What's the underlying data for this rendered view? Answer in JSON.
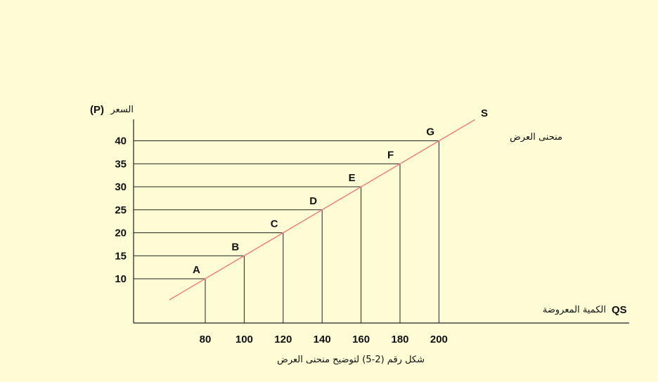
{
  "colors": {
    "background": "#fdfcd4",
    "axis": "#222222",
    "guide": "#222222",
    "supply_line": "#f08080"
  },
  "chart_data": {
    "type": "line",
    "y_axis_title_ar": "السعر",
    "y_axis_title_en": "(P)",
    "x_axis_title_ar": "الكمية المعروضة",
    "x_axis_title_en": "QS",
    "curve_label": "S",
    "curve_name_ar": "منحنى العرض",
    "caption": "شكل رقم (2-5) لتوضيح منحنى العرض",
    "x_ticks": [
      80,
      100,
      120,
      140,
      160,
      180,
      200
    ],
    "y_ticks": [
      10,
      15,
      20,
      25,
      30,
      35,
      40
    ],
    "points": [
      {
        "label": "A",
        "x": 80,
        "y": 10
      },
      {
        "label": "B",
        "x": 100,
        "y": 15
      },
      {
        "label": "C",
        "x": 120,
        "y": 20
      },
      {
        "label": "D",
        "x": 140,
        "y": 25
      },
      {
        "label": "E",
        "x": 160,
        "y": 30
      },
      {
        "label": "F",
        "x": 180,
        "y": 35
      },
      {
        "label": "G",
        "x": 200,
        "y": 40
      }
    ],
    "grid": false,
    "legend": "none"
  }
}
